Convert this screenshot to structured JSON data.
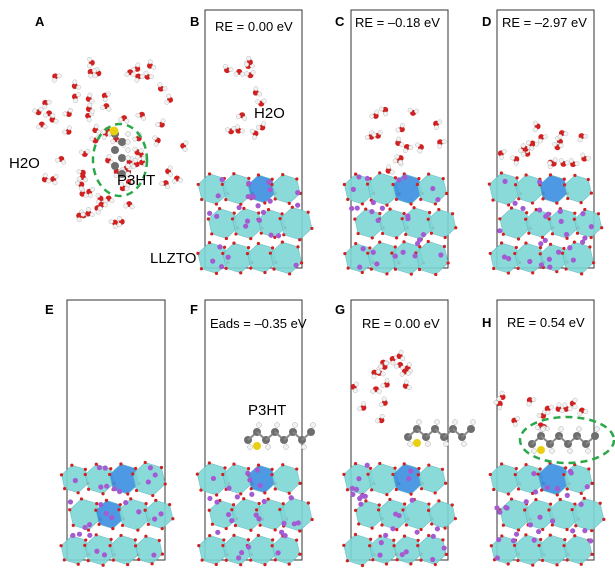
{
  "panels": [
    {
      "letter": "A",
      "text": ""
    },
    {
      "letter": "B",
      "text": "RE = 0.00 eV"
    },
    {
      "letter": "C",
      "text": "RE = –0.18 eV"
    },
    {
      "letter": "D",
      "text": "RE = –2.97 eV"
    },
    {
      "letter": "E",
      "text": ""
    },
    {
      "letter": "F",
      "text": "Eads = –0.35 eV"
    },
    {
      "letter": "G",
      "text": "RE = 0.00 eV"
    },
    {
      "letter": "H",
      "text": "RE = 0.54 eV"
    }
  ],
  "labels": {
    "water_a": "H2O",
    "polymer_a": "P3HT",
    "water_b": "H2O",
    "substrate_b": "LLZTO",
    "polymer_f": "P3HT"
  },
  "colors": {
    "frame": "#333333",
    "polyhedron_light": "#7fd6d6",
    "polyhedron_dark": "#3b8fe0",
    "lithium": "#a45ad0",
    "oxygen": "#d22020",
    "hydrogen": "#f2f2f2",
    "carbon": "#6e6e6e",
    "sulfur": "#e8d010",
    "highlight": "#2aa84a"
  }
}
